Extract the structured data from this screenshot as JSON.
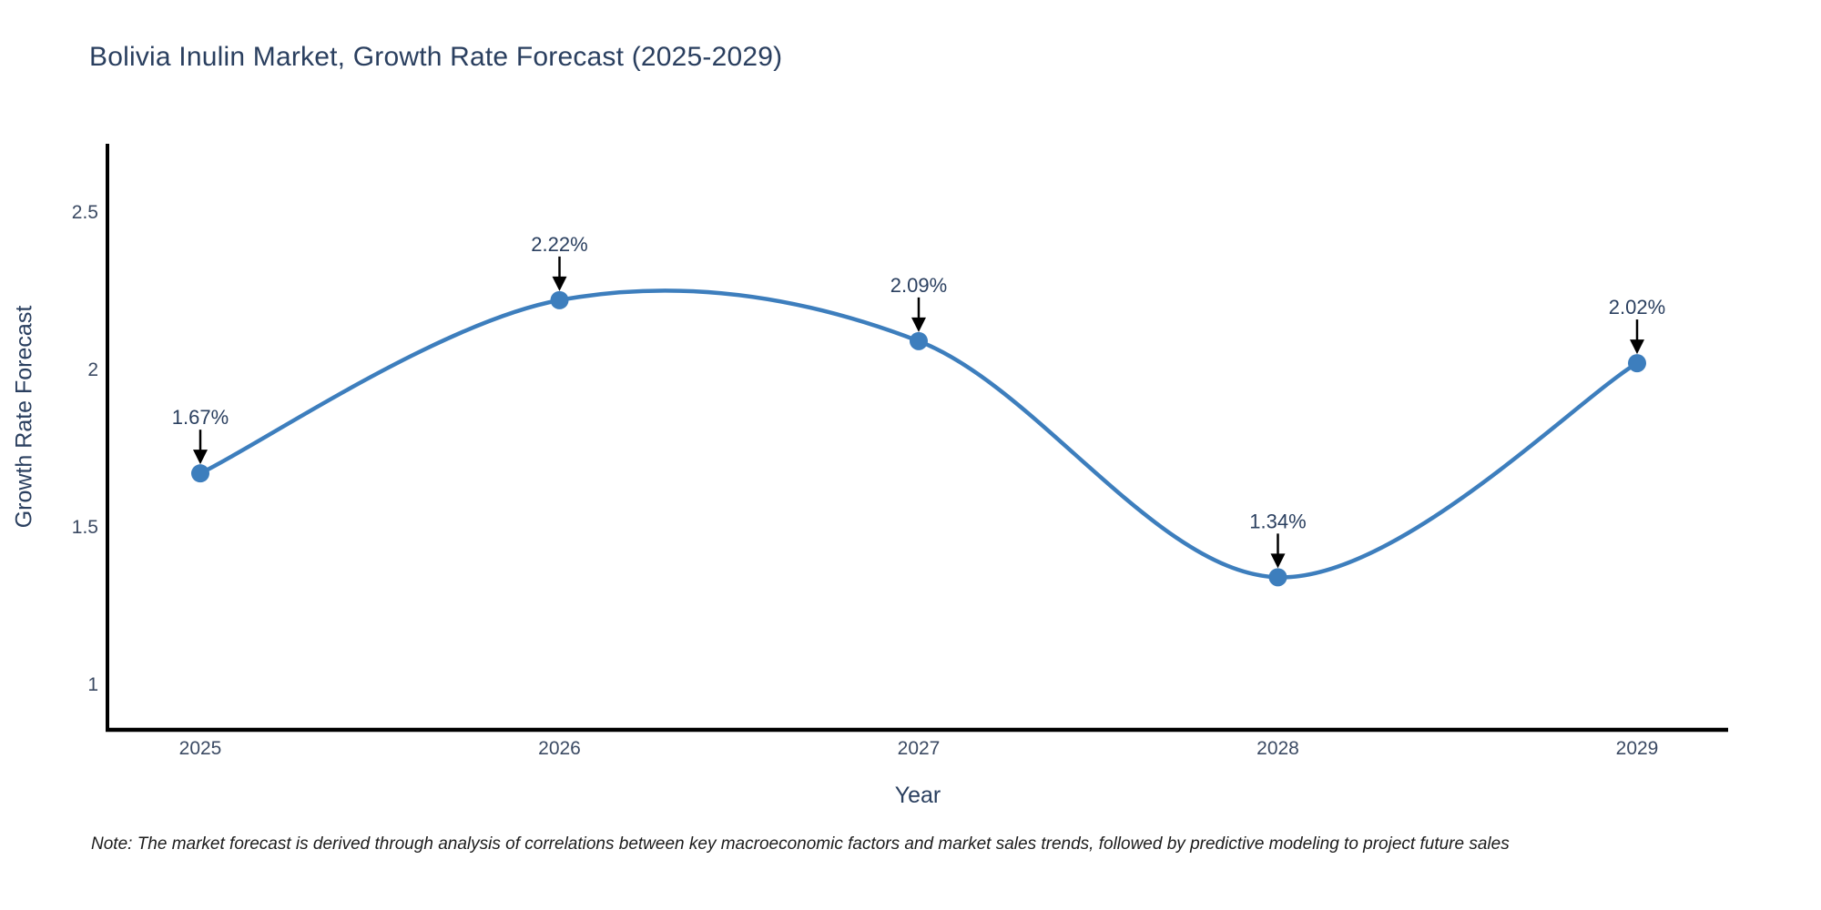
{
  "title": "Bolivia Inulin Market, Growth Rate Forecast (2025-2029)",
  "note": "Note: The market forecast is derived through analysis of correlations between key macroeconomic factors and market sales trends, followed by predictive modeling to project future sales",
  "colors": {
    "line": "#3d7ebd",
    "marker": "#3d7ebd",
    "axis": "#000000",
    "title_text": "#2a3f5f",
    "tick_text": "#3b4a63",
    "annotation_text": "#2a3f5f",
    "annotation_arrow": "#000000"
  },
  "chart_data": {
    "type": "line",
    "line_shape": "spline",
    "title": "Bolivia Inulin Market, Growth Rate Forecast (2025-2029)",
    "xlabel": "Year",
    "ylabel": "Growth Rate Forecast",
    "x": [
      2025,
      2026,
      2027,
      2028,
      2029
    ],
    "y": [
      1.67,
      2.22,
      2.09,
      1.34,
      2.02
    ],
    "point_labels": [
      "1.67%",
      "2.22%",
      "2.09%",
      "1.34%",
      "2.02%"
    ],
    "xtick_labels": [
      "2025",
      "2026",
      "2027",
      "2028",
      "2029"
    ],
    "yticks": [
      1,
      1.5,
      2,
      2.5
    ],
    "ytick_labels": [
      "1",
      "1.5",
      "2",
      "2.5"
    ],
    "xlim": [
      2024.74,
      2029.25
    ],
    "ylim": [
      0.86,
      2.71
    ],
    "grid": false,
    "legend": "none",
    "markers": true,
    "annotations_arrow_direction": "down"
  }
}
